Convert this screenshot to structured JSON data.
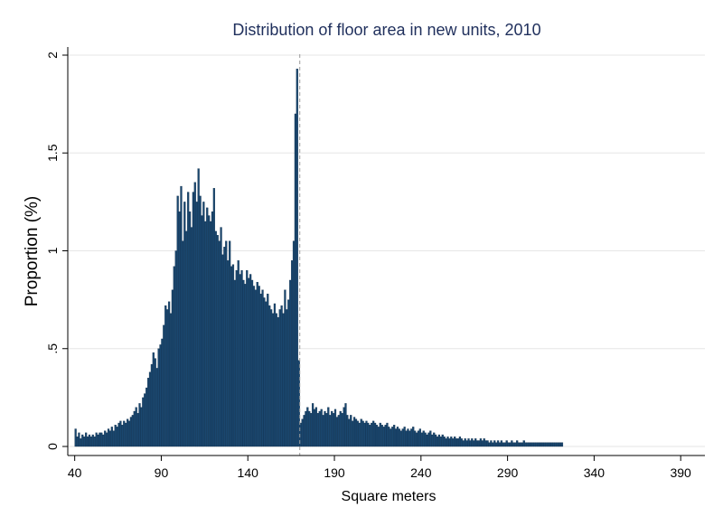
{
  "chart_data": {
    "type": "bar",
    "title": "Distribution of floor area in new units, 2010",
    "xlabel": "Square meters",
    "ylabel": "Proportion (%)",
    "xlim": [
      36,
      404
    ],
    "ylim": [
      0,
      2
    ],
    "x_ticks": [
      40,
      90,
      140,
      190,
      240,
      290,
      340,
      390
    ],
    "y_ticks": [
      {
        "value": 0,
        "label": "0"
      },
      {
        "value": 0.5,
        "label": ".5"
      },
      {
        "value": 1,
        "label": "1"
      },
      {
        "value": 1.5,
        "label": "1.5"
      },
      {
        "value": 2,
        "label": "2"
      }
    ],
    "grid": true,
    "bar_color": "#1a476f",
    "reference_line": {
      "x": 170,
      "color": "#9a9a9a",
      "style": "dashed"
    },
    "bar_width": 1,
    "x_start": 40,
    "values": [
      0.09,
      0.05,
      0.07,
      0.04,
      0.06,
      0.05,
      0.07,
      0.05,
      0.06,
      0.05,
      0.06,
      0.05,
      0.07,
      0.06,
      0.07,
      0.07,
      0.06,
      0.08,
      0.07,
      0.09,
      0.08,
      0.1,
      0.08,
      0.11,
      0.1,
      0.12,
      0.13,
      0.11,
      0.13,
      0.12,
      0.14,
      0.13,
      0.15,
      0.16,
      0.18,
      0.2,
      0.17,
      0.22,
      0.2,
      0.25,
      0.27,
      0.3,
      0.35,
      0.38,
      0.42,
      0.48,
      0.45,
      0.4,
      0.5,
      0.52,
      0.55,
      0.62,
      0.72,
      0.7,
      0.74,
      0.68,
      0.8,
      0.92,
      1.0,
      1.28,
      1.2,
      1.33,
      1.05,
      1.25,
      1.1,
      1.3,
      1.2,
      1.12,
      1.3,
      1.35,
      1.25,
      1.42,
      1.28,
      1.18,
      1.25,
      1.15,
      1.22,
      1.18,
      1.15,
      1.2,
      1.32,
      1.1,
      1.08,
      1.05,
      1.12,
      0.98,
      1.02,
      1.05,
      0.95,
      1.05,
      0.92,
      0.93,
      0.85,
      0.9,
      0.95,
      0.88,
      0.9,
      0.85,
      0.83,
      0.9,
      0.86,
      0.88,
      0.85,
      0.82,
      0.8,
      0.84,
      0.82,
      0.78,
      0.8,
      0.76,
      0.74,
      0.78,
      0.72,
      0.7,
      0.68,
      0.73,
      0.68,
      0.66,
      0.7,
      0.72,
      0.68,
      0.8,
      0.7,
      0.75,
      0.85,
      0.95,
      1.05,
      1.7,
      1.93,
      0.44,
      0.12,
      0.14,
      0.16,
      0.18,
      0.2,
      0.18,
      0.17,
      0.22,
      0.19,
      0.2,
      0.17,
      0.18,
      0.19,
      0.16,
      0.18,
      0.17,
      0.2,
      0.16,
      0.18,
      0.17,
      0.19,
      0.15,
      0.16,
      0.18,
      0.17,
      0.2,
      0.22,
      0.16,
      0.14,
      0.16,
      0.13,
      0.15,
      0.14,
      0.13,
      0.12,
      0.14,
      0.13,
      0.12,
      0.13,
      0.12,
      0.11,
      0.12,
      0.13,
      0.12,
      0.11,
      0.1,
      0.12,
      0.11,
      0.1,
      0.11,
      0.12,
      0.1,
      0.09,
      0.1,
      0.11,
      0.09,
      0.1,
      0.09,
      0.08,
      0.09,
      0.1,
      0.08,
      0.09,
      0.08,
      0.09,
      0.1,
      0.08,
      0.07,
      0.08,
      0.09,
      0.07,
      0.08,
      0.07,
      0.06,
      0.07,
      0.08,
      0.06,
      0.07,
      0.06,
      0.05,
      0.06,
      0.05,
      0.06,
      0.05,
      0.04,
      0.05,
      0.04,
      0.05,
      0.04,
      0.05,
      0.04,
      0.04,
      0.05,
      0.04,
      0.03,
      0.04,
      0.03,
      0.04,
      0.03,
      0.04,
      0.03,
      0.04,
      0.03,
      0.03,
      0.04,
      0.03,
      0.04,
      0.03,
      0.03,
      0.02,
      0.03,
      0.02,
      0.03,
      0.02,
      0.03,
      0.02,
      0.03,
      0.02,
      0.02,
      0.03,
      0.02,
      0.02,
      0.03,
      0.02,
      0.02,
      0.03,
      0.02,
      0.02,
      0.02,
      0.03,
      0.02,
      0.02,
      0.02,
      0.02,
      0.02,
      0.02,
      0.02,
      0.02,
      0.02,
      0.02,
      0.02,
      0.02,
      0.02,
      0.02,
      0.02,
      0.02,
      0.02,
      0.02,
      0.02,
      0.02,
      0.02,
      0.02
    ]
  }
}
